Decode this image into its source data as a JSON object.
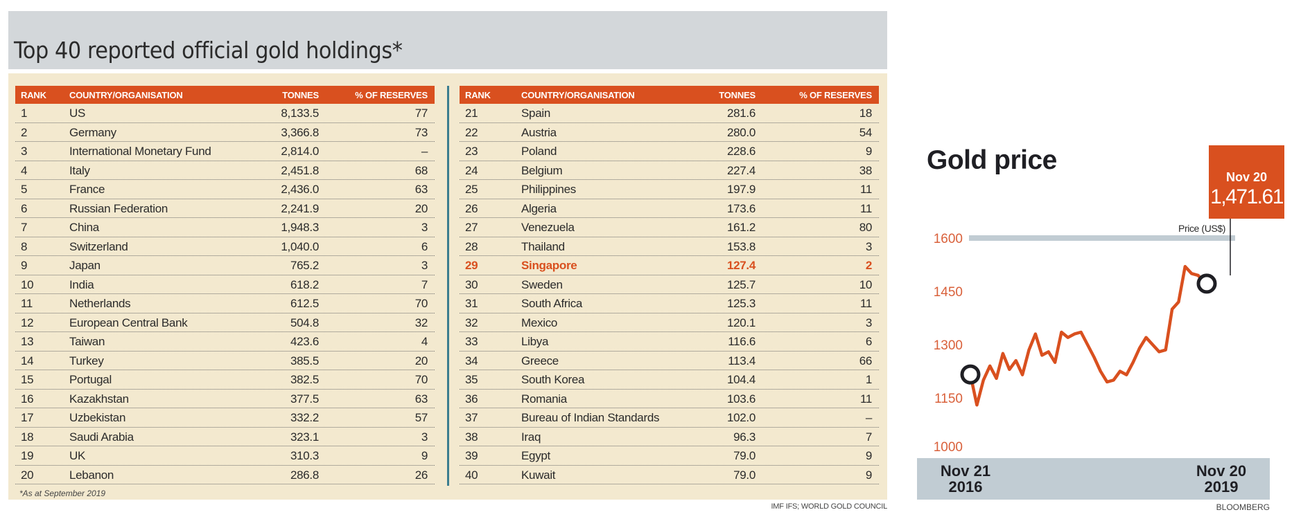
{
  "holdings": {
    "title": "Top 40 reported official gold holdings*",
    "columns": {
      "rank": "RANK",
      "name": "COUNTRY/ORGANISATION",
      "tonnes": "TONNES",
      "pct": "% OF RESERVES"
    },
    "highlight_rank": "29",
    "highlight_color": "#d9501f",
    "left_rows": [
      {
        "rank": "1",
        "name": "US",
        "tonnes": "8,133.5",
        "pct": "77"
      },
      {
        "rank": "2",
        "name": "Germany",
        "tonnes": "3,366.8",
        "pct": "73"
      },
      {
        "rank": "3",
        "name": "International Monetary Fund",
        "tonnes": "2,814.0",
        "pct": "–"
      },
      {
        "rank": "4",
        "name": "Italy",
        "tonnes": "2,451.8",
        "pct": "68"
      },
      {
        "rank": "5",
        "name": "France",
        "tonnes": "2,436.0",
        "pct": "63"
      },
      {
        "rank": "6",
        "name": "Russian Federation",
        "tonnes": "2,241.9",
        "pct": "20"
      },
      {
        "rank": "7",
        "name": "China",
        "tonnes": "1,948.3",
        "pct": "3"
      },
      {
        "rank": "8",
        "name": "Switzerland",
        "tonnes": "1,040.0",
        "pct": "6"
      },
      {
        "rank": "9",
        "name": "Japan",
        "tonnes": "765.2",
        "pct": "3"
      },
      {
        "rank": "10",
        "name": "India",
        "tonnes": "618.2",
        "pct": "7"
      },
      {
        "rank": "11",
        "name": "Netherlands",
        "tonnes": "612.5",
        "pct": "70"
      },
      {
        "rank": "12",
        "name": "European Central Bank",
        "tonnes": "504.8",
        "pct": "32"
      },
      {
        "rank": "13",
        "name": "Taiwan",
        "tonnes": "423.6",
        "pct": "4"
      },
      {
        "rank": "14",
        "name": "Turkey",
        "tonnes": "385.5",
        "pct": "20"
      },
      {
        "rank": "15",
        "name": "Portugal",
        "tonnes": "382.5",
        "pct": "70"
      },
      {
        "rank": "16",
        "name": "Kazakhstan",
        "tonnes": "377.5",
        "pct": "63"
      },
      {
        "rank": "17",
        "name": "Uzbekistan",
        "tonnes": "332.2",
        "pct": "57"
      },
      {
        "rank": "18",
        "name": "Saudi Arabia",
        "tonnes": "323.1",
        "pct": "3"
      },
      {
        "rank": "19",
        "name": "UK",
        "tonnes": "310.3",
        "pct": "9"
      },
      {
        "rank": "20",
        "name": "Lebanon",
        "tonnes": "286.8",
        "pct": "26"
      }
    ],
    "right_rows": [
      {
        "rank": "21",
        "name": "Spain",
        "tonnes": "281.6",
        "pct": "18"
      },
      {
        "rank": "22",
        "name": "Austria",
        "tonnes": "280.0",
        "pct": "54"
      },
      {
        "rank": "23",
        "name": "Poland",
        "tonnes": "228.6",
        "pct": "9"
      },
      {
        "rank": "24",
        "name": "Belgium",
        "tonnes": "227.4",
        "pct": "38"
      },
      {
        "rank": "25",
        "name": "Philippines",
        "tonnes": "197.9",
        "pct": "11"
      },
      {
        "rank": "26",
        "name": "Algeria",
        "tonnes": "173.6",
        "pct": "11"
      },
      {
        "rank": "27",
        "name": "Venezuela",
        "tonnes": "161.2",
        "pct": "80"
      },
      {
        "rank": "28",
        "name": "Thailand",
        "tonnes": "153.8",
        "pct": "3"
      },
      {
        "rank": "29",
        "name": "Singapore",
        "tonnes": "127.4",
        "pct": "2"
      },
      {
        "rank": "30",
        "name": "Sweden",
        "tonnes": "125.7",
        "pct": "10"
      },
      {
        "rank": "31",
        "name": "South Africa",
        "tonnes": "125.3",
        "pct": "11"
      },
      {
        "rank": "32",
        "name": "Mexico",
        "tonnes": "120.1",
        "pct": "3"
      },
      {
        "rank": "33",
        "name": "Libya",
        "tonnes": "116.6",
        "pct": "6"
      },
      {
        "rank": "34",
        "name": "Greece",
        "tonnes": "113.4",
        "pct": "66"
      },
      {
        "rank": "35",
        "name": "South Korea",
        "tonnes": "104.4",
        "pct": "1"
      },
      {
        "rank": "36",
        "name": "Romania",
        "tonnes": "103.6",
        "pct": "11"
      },
      {
        "rank": "37",
        "name": "Bureau of Indian Standards",
        "tonnes": "102.0",
        "pct": "–"
      },
      {
        "rank": "38",
        "name": "Iraq",
        "tonnes": "96.3",
        "pct": "7"
      },
      {
        "rank": "39",
        "name": "Egypt",
        "tonnes": "79.0",
        "pct": "9"
      },
      {
        "rank": "40",
        "name": "Kuwait",
        "tonnes": "79.0",
        "pct": "9"
      }
    ],
    "footnote": "*As at September 2019",
    "source": "IMF IFS; WORLD GOLD COUNCIL"
  },
  "chart_data": {
    "type": "line",
    "title": "Gold price",
    "ylabel": "Price (US$)",
    "xlabel": "",
    "ylim": [
      1000,
      1600
    ],
    "yticks": [
      "1600",
      "1450",
      "1300",
      "1150",
      "1000"
    ],
    "xtick_labels": [
      {
        "line1": "Nov 21",
        "line2": "2016"
      },
      {
        "line1": "Nov 20",
        "line2": "2019"
      }
    ],
    "callout": {
      "date": "Nov 20",
      "value": "1,471.61"
    },
    "series_color": "#d9501f",
    "gridline_at": 1600,
    "source": "BLOOMBERG",
    "x": [
      "2016-11",
      "2016-12",
      "2017-01",
      "2017-02",
      "2017-03",
      "2017-04",
      "2017-05",
      "2017-06",
      "2017-07",
      "2017-08",
      "2017-09",
      "2017-10",
      "2017-11",
      "2017-12",
      "2018-01",
      "2018-02",
      "2018-03",
      "2018-04",
      "2018-05",
      "2018-06",
      "2018-07",
      "2018-08",
      "2018-09",
      "2018-10",
      "2018-11",
      "2018-12",
      "2019-01",
      "2019-02",
      "2019-03",
      "2019-04",
      "2019-05",
      "2019-06",
      "2019-07",
      "2019-08",
      "2019-09",
      "2019-10",
      "2019-11"
    ],
    "values": [
      1216,
      1130,
      1200,
      1240,
      1205,
      1275,
      1230,
      1255,
      1215,
      1285,
      1330,
      1270,
      1280,
      1250,
      1335,
      1320,
      1330,
      1335,
      1300,
      1265,
      1225,
      1195,
      1200,
      1225,
      1215,
      1250,
      1290,
      1320,
      1300,
      1280,
      1285,
      1400,
      1420,
      1520,
      1500,
      1495,
      1471.61
    ]
  }
}
